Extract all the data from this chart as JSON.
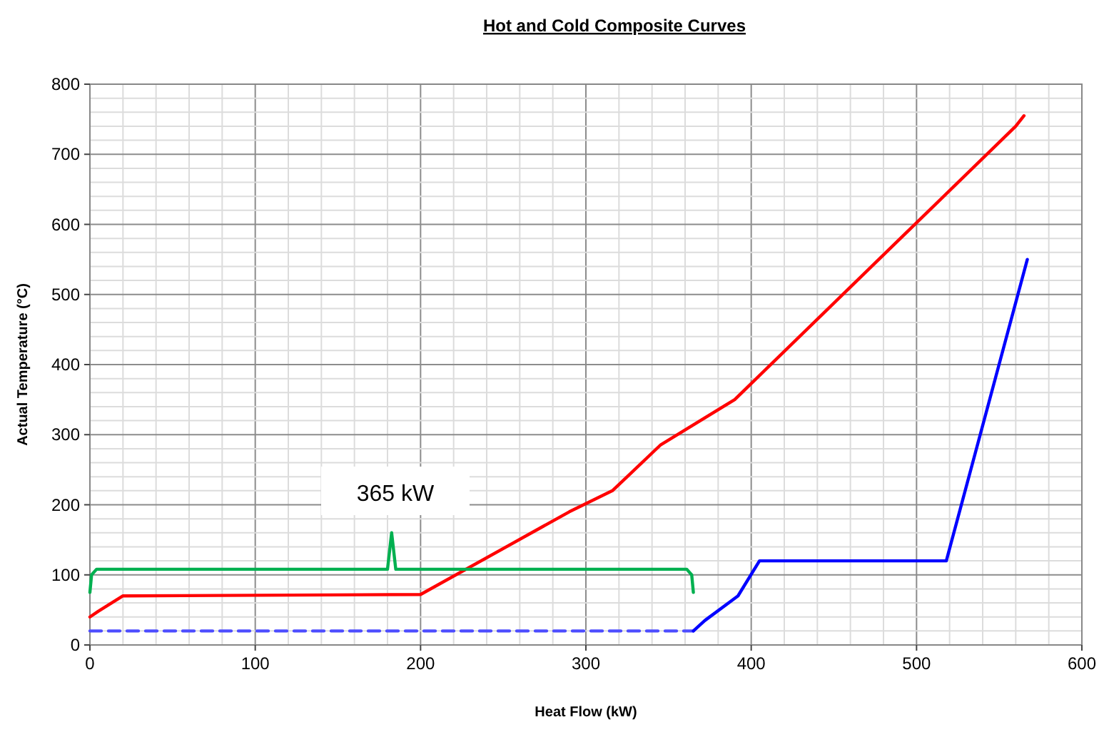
{
  "chart_data": {
    "type": "line",
    "title": "Hot and Cold Composite Curves",
    "xlabel": "Heat Flow  (kW)",
    "ylabel": "Actual Temperature  (°C)",
    "xlim": [
      0,
      600
    ],
    "ylim": [
      0,
      800
    ],
    "xticks": [
      0,
      {
        "value": 20,
        "label": null
      },
      {
        "value": 40,
        "label": null
      },
      {
        "value": 60,
        "label": null
      },
      {
        "value": 80,
        "label": null
      },
      100,
      {
        "value": 120,
        "label": null
      },
      {
        "value": 140,
        "label": null
      },
      {
        "value": 160,
        "label": null
      },
      {
        "value": 180,
        "label": null
      },
      200,
      {
        "value": 220,
        "label": null
      },
      {
        "value": 240,
        "label": null
      },
      {
        "value": 260,
        "label": null
      },
      {
        "value": 280,
        "label": null
      },
      300,
      {
        "value": 320,
        "label": null
      },
      {
        "value": 340,
        "label": null
      },
      {
        "value": 360,
        "label": null
      },
      {
        "value": 380,
        "label": null
      },
      400,
      {
        "value": 420,
        "label": null
      },
      {
        "value": 440,
        "label": null
      },
      {
        "value": 460,
        "label": null
      },
      {
        "value": 480,
        "label": null
      },
      500,
      {
        "value": 520,
        "label": null
      },
      {
        "value": 540,
        "label": null
      },
      {
        "value": 560,
        "label": null
      },
      {
        "value": 580,
        "label": null
      },
      600
    ],
    "yticks": [
      0,
      {
        "value": 20,
        "label": null
      },
      {
        "value": 40,
        "label": null
      },
      {
        "value": 60,
        "label": null
      },
      {
        "value": 80,
        "label": null
      },
      100,
      {
        "value": 120,
        "label": null
      },
      {
        "value": 140,
        "label": null
      },
      {
        "value": 160,
        "label": null
      },
      {
        "value": 180,
        "label": null
      },
      200,
      {
        "value": 220,
        "label": null
      },
      {
        "value": 240,
        "label": null
      },
      {
        "value": 260,
        "label": null
      },
      {
        "value": 280,
        "label": null
      },
      300,
      {
        "value": 320,
        "label": null
      },
      {
        "value": 340,
        "label": null
      },
      {
        "value": 360,
        "label": null
      },
      {
        "value": 380,
        "label": null
      },
      400,
      {
        "value": 420,
        "label": null
      },
      {
        "value": 440,
        "label": null
      },
      {
        "value": 460,
        "label": null
      },
      {
        "value": 480,
        "label": null
      },
      500,
      {
        "value": 520,
        "label": null
      },
      {
        "value": 540,
        "label": null
      },
      {
        "value": 560,
        "label": null
      },
      {
        "value": 580,
        "label": null
      },
      600,
      {
        "value": 620,
        "label": null
      },
      {
        "value": 640,
        "label": null
      },
      {
        "value": 660,
        "label": null
      },
      {
        "value": 680,
        "label": null
      },
      700,
      {
        "value": 720,
        "label": null
      },
      {
        "value": 740,
        "label": null
      },
      {
        "value": 760,
        "label": null
      },
      {
        "value": 780,
        "label": null
      },
      800
    ],
    "grid": true,
    "marker": "none",
    "series": [
      {
        "color": "#ff0000",
        "x": [
          0,
          5,
          20,
          200,
          290,
          316,
          325,
          345,
          390,
          560,
          565
        ],
        "values": [
          40,
          48,
          70,
          72,
          190,
          220,
          240,
          285,
          350,
          740,
          755
        ]
      },
      {
        "color": "#4d4dff",
        "line_style": "dashed",
        "x": [
          0,
          365
        ],
        "values": [
          20,
          20
        ]
      },
      {
        "color": "#0000ff",
        "x": [
          365,
          372,
          392,
          405,
          518,
          567
        ],
        "values": [
          20,
          35,
          70,
          120,
          120,
          550
        ]
      },
      {
        "color": "#00b050",
        "x": [
          0,
          1,
          4,
          180,
          182.5,
          185,
          361,
          364,
          365
        ],
        "values": [
          75,
          100,
          108,
          108,
          160,
          108,
          108,
          100,
          75
        ]
      }
    ],
    "annotations": [
      "365 kW"
    ]
  }
}
